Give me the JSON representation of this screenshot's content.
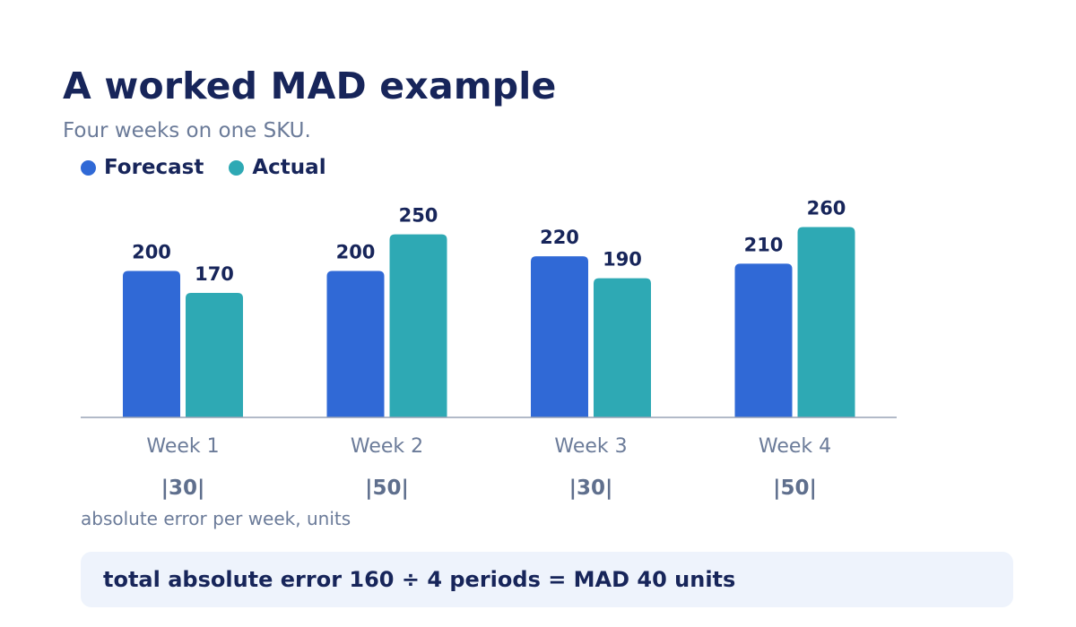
{
  "title": "A worked MAD example",
  "subtitle": "Four weeks on one SKU.",
  "legend": [
    {
      "label": "Forecast",
      "color": "#3069d6"
    },
    {
      "label": "Actual",
      "color": "#2ea9b4"
    }
  ],
  "chart_data": {
    "type": "bar",
    "title": "A worked MAD example",
    "subtitle": "Four weeks on one SKU.",
    "categories": [
      "Week 1",
      "Week 2",
      "Week 3",
      "Week 4"
    ],
    "series": [
      {
        "name": "Forecast",
        "color": "#3069d6",
        "values": [
          200,
          200,
          220,
          210
        ]
      },
      {
        "name": "Actual",
        "color": "#2ea9b4",
        "values": [
          170,
          250,
          190,
          260
        ]
      }
    ],
    "ylim": [
      0,
      300
    ],
    "grid": false,
    "legend_position": "top-left",
    "absolute_errors": [
      "|30|",
      "|50|",
      "|30|",
      "|50|"
    ]
  },
  "errors_caption": "absolute error per week, units",
  "summary": "total absolute error 160 ÷ 4 periods = MAD 40 units"
}
